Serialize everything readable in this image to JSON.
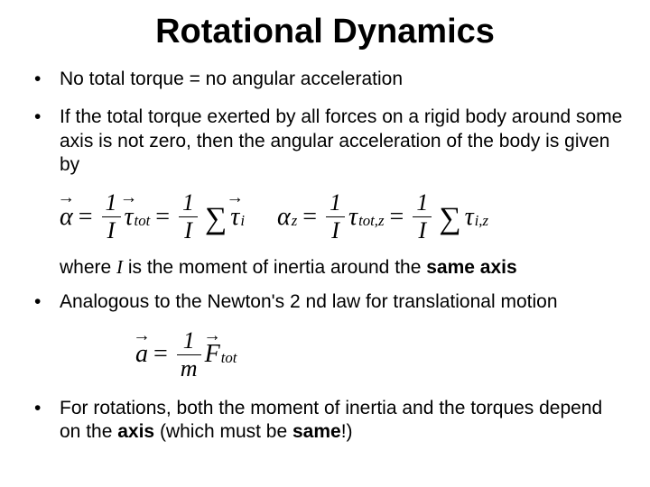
{
  "title": "Rotational Dynamics",
  "bullets": {
    "b1": "No total torque = no angular acceleration",
    "b2": "If the total torque exerted by all forces on a rigid body around some axis is not zero, then the angular acceleration of the body is given by",
    "b2_tail_a": "where ",
    "b2_tail_I": "I",
    "b2_tail_b": " is the moment of inertia around the ",
    "b2_tail_bold": "same axis",
    "b3": "Analogous to the Newton's 2 nd law for translational motion",
    "b4_a": "For rotations, both the moment of inertia and the torques depend on the ",
    "b4_bold1": "axis",
    "b4_b": " (which must be ",
    "b4_bold2": "same",
    "b4_c": "!)"
  },
  "equations": {
    "alpha": "α",
    "alpha_z": "α",
    "z": "z",
    "eq": "=",
    "one": "1",
    "I": "I",
    "tau": "τ",
    "tot": "tot",
    "totz": "tot,z",
    "i": "i",
    "iz": "i,z",
    "sum": "∑",
    "a": "a",
    "m": "m",
    "F": "F"
  },
  "style": {
    "title_fontsize": 38,
    "body_fontsize": 21,
    "eq_fontsize": 28,
    "text_color": "#000000",
    "background_color": "#ffffff",
    "font_family_body": "Arial",
    "font_family_math": "Times New Roman"
  }
}
